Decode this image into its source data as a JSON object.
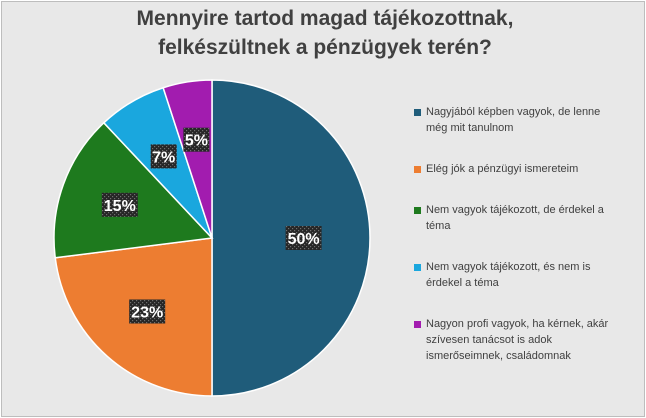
{
  "chart_data": {
    "type": "pie",
    "title": "Mennyire tartod magad tájékozottnak, felkészültnek a pénzügyek terén?",
    "title_lines": [
      "Mennyire tartod magad tájékozottnak,",
      "felkészültnek a pénzügyek terén?"
    ],
    "categories": [
      "Nagyjából képben vagyok, de lenne még mit tanulnom",
      "Elég jók a pénzügyi ismereteim",
      "Nem vagyok tájékozott, de érdekel a téma",
      "Nem vagyok tájékozott, és nem is érdekel a téma",
      "Nagyon profi vagyok, ha kérnek, akár szívesen tanácsot is adok ismerőseimnek, családomnak"
    ],
    "values": [
      50,
      23,
      15,
      7,
      5
    ],
    "value_labels": [
      "50%",
      "23%",
      "15%",
      "7%",
      "5%"
    ],
    "colors": [
      "#1f5c7a",
      "#ed7d31",
      "#1e7a1e",
      "#1aa7de",
      "#a21caf"
    ],
    "legend_position": "right"
  },
  "legend": {
    "items": [
      {
        "lines": [
          "Nagyjából képben vagyok, de lenne",
          "még mit tanulnom"
        ],
        "color": "#1f5c7a"
      },
      {
        "lines": [
          "Elég jók a pénzügyi ismereteim"
        ],
        "color": "#ed7d31"
      },
      {
        "lines": [
          "Nem vagyok tájékozott, de érdekel a",
          "téma"
        ],
        "color": "#1e7a1e"
      },
      {
        "lines": [
          "Nem vagyok tájékozott, és nem is",
          "érdekel a téma"
        ],
        "color": "#1aa7de"
      },
      {
        "lines": [
          "Nagyon profi vagyok, ha kérnek, akár",
          "szívesen tanácsot is adok",
          "ismerőseimnek, családomnak"
        ],
        "color": "#a21caf"
      }
    ]
  }
}
